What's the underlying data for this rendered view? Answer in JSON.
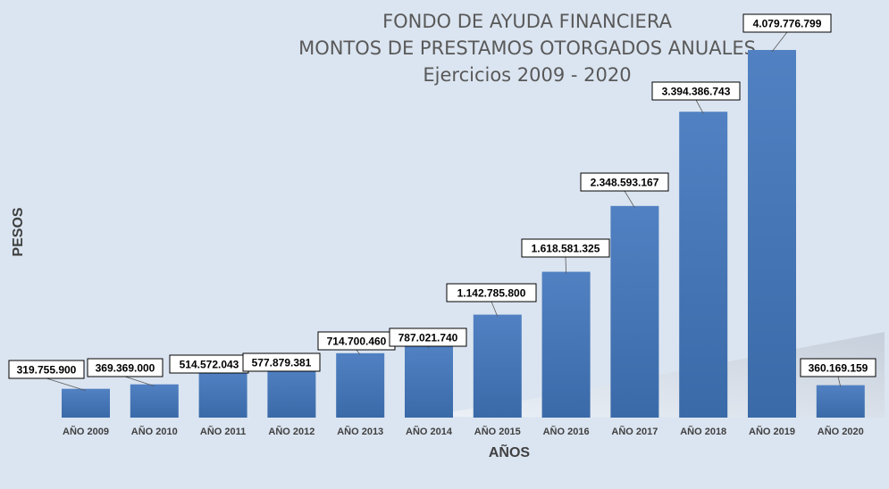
{
  "chart_data": {
    "type": "bar",
    "title": [
      "FONDO DE AYUDA FINANCIERA",
      "MONTOS DE PRESTAMOS OTORGADOS ANUALES",
      "Ejercicios 2009 - 2020"
    ],
    "xlabel": "AÑOS",
    "ylabel": "PESOS",
    "categories": [
      "AÑO 2009",
      "AÑO 2010",
      "AÑO 2011",
      "AÑO 2012",
      "AÑO 2013",
      "AÑO 2014",
      "AÑO 2015",
      "AÑO 2016",
      "AÑO 2017",
      "AÑO 2018",
      "AÑO 2019",
      "AÑO 2020"
    ],
    "values": [
      319755900,
      369369000,
      514572043,
      577879381,
      714700460,
      787021740,
      1142785800,
      1618581325,
      2348593167,
      3394386743,
      4079776799,
      360169159
    ],
    "data_labels": [
      "319.755.900",
      "369.369.000",
      "514.572.043",
      "577.879.381",
      "714.700.460",
      "787.021.740",
      "1.142.785.800",
      "1.618.581.325",
      "2.348.593.167",
      "3.394.386.743",
      "4.079.776.799",
      "360.169.159"
    ],
    "ylim": [
      0,
      4079776799
    ],
    "grid": false,
    "legend": "none",
    "colors": {
      "bar_top": "#5181c2",
      "bar_bottom": "#3a6aa8",
      "background": "#dbe5f1",
      "title": "#595959"
    }
  }
}
